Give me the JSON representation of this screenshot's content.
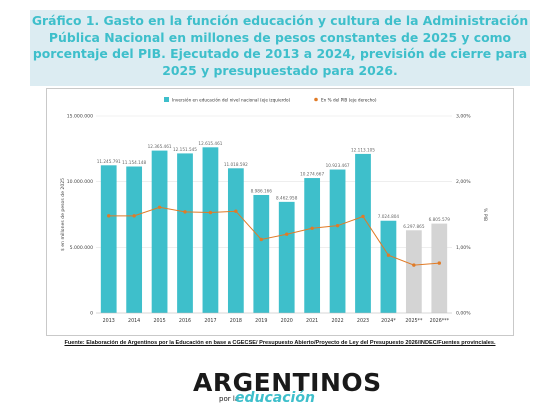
{
  "title": "Gráfico 1. Gasto en la función educación y cultura de la Administración Pública Nacional en millones de pesos constantes de 2025 y como porcentaje del PIB. Ejecutado de 2013 a 2024, previsión de cierre para 2025 y presupuestado para 2026.",
  "source": "Fuente: Elaboración de Argentinos por la Educación en base a CGECSE/ Presupuesto Abierto/Proyecto de Ley del Presupuesto 2026/INDEC/Fuentes provinciales.",
  "logo": {
    "main": "ARGENTINOS",
    "por": "por la",
    "edu": "educación"
  },
  "colors": {
    "bar": "#3ebfcb",
    "projected_bar": "#d4d4d4",
    "line": "#e07b27",
    "title": "#3ebfcb",
    "title_bg": "#dcecf2"
  },
  "chart_data": {
    "type": "bar+line",
    "categories": [
      "2013",
      "2014",
      "2015",
      "2016",
      "2017",
      "2018",
      "2019",
      "2020",
      "2021",
      "2022",
      "2023",
      "2024*",
      "2025**",
      "2026***"
    ],
    "bar_values": [
      11245791,
      11154148,
      12365461,
      12151545,
      12615461,
      11018592,
      8986166,
      8462958,
      10274667,
      10923467,
      12113105,
      7024804,
      6297865,
      6805579
    ],
    "bar_labels": [
      "11.245.791",
      "11.154.148",
      "12.365.461",
      "12.151.545",
      "12.615.461",
      "11.018.592",
      "8.986.166",
      "8.462.958",
      "10.274.667",
      "10.923.467",
      "12.113.105",
      "7.024.804",
      "6.297.865",
      "6.805.579"
    ],
    "line_values": [
      1.48,
      1.48,
      1.61,
      1.54,
      1.53,
      1.55,
      1.12,
      1.2,
      1.29,
      1.33,
      1.47,
      0.88,
      0.73,
      0.76
    ],
    "legend": [
      "Inversión en educación del nivel nacional (eje izquierdo)",
      "En % del PIB (eje derecho)"
    ],
    "ylabel_left": "$ en millones de pesos de 2025",
    "ylabel_right": "% PIB",
    "left_ticks": [
      "0",
      "5.000.000",
      "10.000.000",
      "15.000.000"
    ],
    "right_ticks": [
      "0,00%",
      "1,00%",
      "2,00%",
      "3,00%"
    ],
    "ylim_left": [
      0,
      15000000
    ],
    "ylim_right": [
      0,
      3
    ],
    "grid": true,
    "legend_position": "top-center"
  }
}
